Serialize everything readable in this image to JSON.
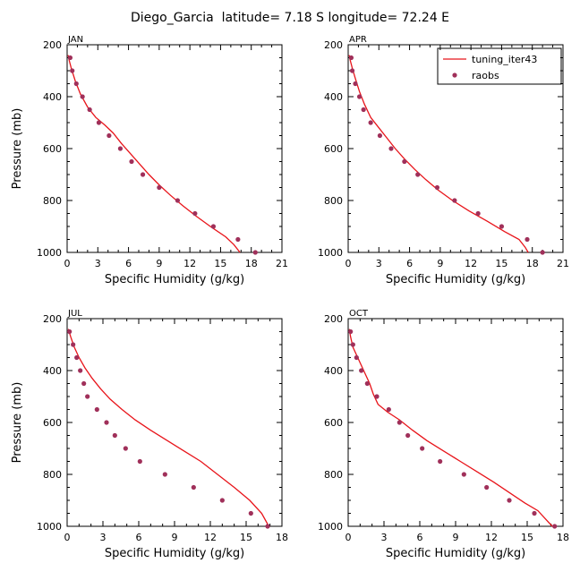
{
  "title": "Diego_Garcia  latitude= 7.18 S longitude= 72.24 E",
  "colors": {
    "model": "#e8141a",
    "obs": "#a0305a"
  },
  "chart_data": [
    {
      "type": "line",
      "panel_label": "JAN",
      "xlabel": "Specific Humidity (g/kg)",
      "ylabel": "Pressure (mb)",
      "xlim": [
        0,
        21
      ],
      "ylim": [
        1000,
        200
      ],
      "xticks": [
        0,
        3,
        6,
        9,
        12,
        15,
        18,
        21
      ],
      "xtick_labels": [
        "0",
        "3",
        "6",
        "9",
        "12",
        "15",
        "18",
        "21"
      ],
      "yticks": [
        200,
        400,
        600,
        800,
        1000
      ],
      "ytick_labels": [
        "200",
        "400",
        "600",
        "800",
        "1000"
      ],
      "legend": null,
      "series": [
        {
          "name": "tuning_iter43",
          "kind": "line",
          "x": [
            0.1,
            0.2,
            0.4,
            0.8,
            1.3,
            2.0,
            2.8,
            3.7,
            4.5,
            5.3,
            6.2,
            7.1,
            8.0,
            9.0,
            10.1,
            11.3,
            12.6,
            14.0,
            15.5,
            16.3,
            16.9
          ],
          "y": [
            240,
            260,
            290,
            340,
            390,
            440,
            480,
            510,
            540,
            580,
            620,
            660,
            700,
            740,
            780,
            820,
            860,
            900,
            940,
            970,
            1000
          ]
        },
        {
          "name": "raobs",
          "kind": "scatter",
          "x": [
            0.3,
            0.5,
            0.9,
            1.5,
            2.2,
            3.1,
            4.1,
            5.2,
            6.3,
            7.4,
            9.0,
            10.8,
            12.5,
            14.3,
            16.7,
            18.4
          ],
          "y": [
            250,
            300,
            350,
            400,
            450,
            500,
            550,
            600,
            650,
            700,
            750,
            800,
            850,
            900,
            950,
            1000
          ]
        }
      ]
    },
    {
      "type": "line",
      "panel_label": "APR",
      "xlabel": "Specific Humidity (g/kg)",
      "ylabel": "",
      "xlim": [
        0,
        21
      ],
      "ylim": [
        1000,
        200
      ],
      "xticks": [
        0,
        3,
        6,
        9,
        12,
        15,
        18,
        21
      ],
      "xtick_labels": [
        "0",
        "3",
        "6",
        "9",
        "12",
        "15",
        "18",
        "21"
      ],
      "yticks": [
        200,
        400,
        600,
        800,
        1000
      ],
      "ytick_labels": [
        "200",
        "400",
        "600",
        "800",
        "1000"
      ],
      "legend": "top-right",
      "series": [
        {
          "name": "tuning_iter43",
          "kind": "line",
          "x": [
            0.1,
            0.2,
            0.4,
            0.7,
            1.1,
            1.6,
            2.2,
            3.0,
            3.8,
            4.6,
            5.5,
            6.5,
            7.6,
            8.8,
            10.2,
            11.8,
            13.6,
            15.3,
            16.7,
            17.3,
            17.6
          ],
          "y": [
            240,
            260,
            290,
            330,
            380,
            430,
            480,
            520,
            560,
            600,
            640,
            680,
            720,
            760,
            800,
            840,
            880,
            920,
            950,
            980,
            1000
          ]
        },
        {
          "name": "raobs",
          "kind": "scatter",
          "x": [
            0.3,
            0.4,
            0.7,
            1.1,
            1.5,
            2.2,
            3.1,
            4.2,
            5.5,
            6.8,
            8.7,
            10.4,
            12.7,
            15.0,
            17.5,
            19.0
          ],
          "y": [
            250,
            300,
            350,
            400,
            450,
            500,
            550,
            600,
            650,
            700,
            750,
            800,
            850,
            900,
            950,
            1000
          ]
        }
      ]
    },
    {
      "type": "line",
      "panel_label": "JUL",
      "xlabel": "Specific Humidity (g/kg)",
      "ylabel": "Pressure (mb)",
      "xlim": [
        0,
        18
      ],
      "ylim": [
        1000,
        200
      ],
      "xticks": [
        0,
        3,
        6,
        9,
        12,
        15,
        18
      ],
      "xtick_labels": [
        "0",
        "3",
        "6",
        "9",
        "12",
        "15",
        "18"
      ],
      "yticks": [
        200,
        400,
        600,
        800,
        1000
      ],
      "ytick_labels": [
        "200",
        "400",
        "600",
        "800",
        "1000"
      ],
      "legend": null,
      "series": [
        {
          "name": "tuning_iter43",
          "kind": "line",
          "x": [
            0.1,
            0.3,
            0.6,
            1.0,
            1.5,
            2.1,
            2.8,
            3.6,
            4.6,
            5.7,
            7.0,
            8.4,
            9.8,
            11.2,
            12.6,
            14.0,
            15.3,
            16.3,
            16.9
          ],
          "y": [
            240,
            270,
            310,
            350,
            390,
            430,
            470,
            510,
            550,
            590,
            630,
            670,
            710,
            750,
            800,
            850,
            900,
            950,
            1000
          ]
        },
        {
          "name": "raobs",
          "kind": "scatter",
          "x": [
            0.2,
            0.5,
            0.8,
            1.1,
            1.4,
            1.7,
            2.5,
            3.3,
            4.0,
            4.9,
            6.1,
            8.2,
            10.6,
            13.0,
            15.4,
            16.8
          ],
          "y": [
            250,
            300,
            350,
            400,
            450,
            500,
            550,
            600,
            650,
            700,
            750,
            800,
            850,
            900,
            950,
            1000
          ]
        }
      ]
    },
    {
      "type": "line",
      "panel_label": "OCT",
      "xlabel": "Specific Humidity (g/kg)",
      "ylabel": "",
      "xlim": [
        0,
        18
      ],
      "ylim": [
        1000,
        200
      ],
      "xticks": [
        0,
        3,
        6,
        9,
        12,
        15,
        18
      ],
      "xtick_labels": [
        "0",
        "3",
        "6",
        "9",
        "12",
        "15",
        "18"
      ],
      "yticks": [
        200,
        400,
        600,
        800,
        1000
      ],
      "ytick_labels": [
        "200",
        "400",
        "600",
        "800",
        "1000"
      ],
      "legend": null,
      "series": [
        {
          "name": "tuning_iter43",
          "kind": "line",
          "x": [
            0.1,
            0.2,
            0.4,
            0.8,
            1.3,
            1.8,
            2.1,
            2.5,
            3.3,
            4.3,
            5.4,
            6.6,
            8.0,
            9.4,
            10.8,
            12.2,
            13.5,
            14.8,
            15.9,
            16.5,
            17.1
          ],
          "y": [
            240,
            270,
            310,
            350,
            400,
            450,
            490,
            530,
            560,
            590,
            630,
            670,
            710,
            750,
            790,
            830,
            870,
            910,
            940,
            970,
            1000
          ]
        },
        {
          "name": "raobs",
          "kind": "scatter",
          "x": [
            0.2,
            0.4,
            0.7,
            1.1,
            1.6,
            2.4,
            3.4,
            4.3,
            5.0,
            6.2,
            7.7,
            9.7,
            11.6,
            13.5,
            15.6,
            17.3
          ],
          "y": [
            250,
            300,
            350,
            400,
            450,
            500,
            550,
            600,
            650,
            700,
            750,
            800,
            850,
            900,
            950,
            1000
          ]
        }
      ]
    }
  ]
}
